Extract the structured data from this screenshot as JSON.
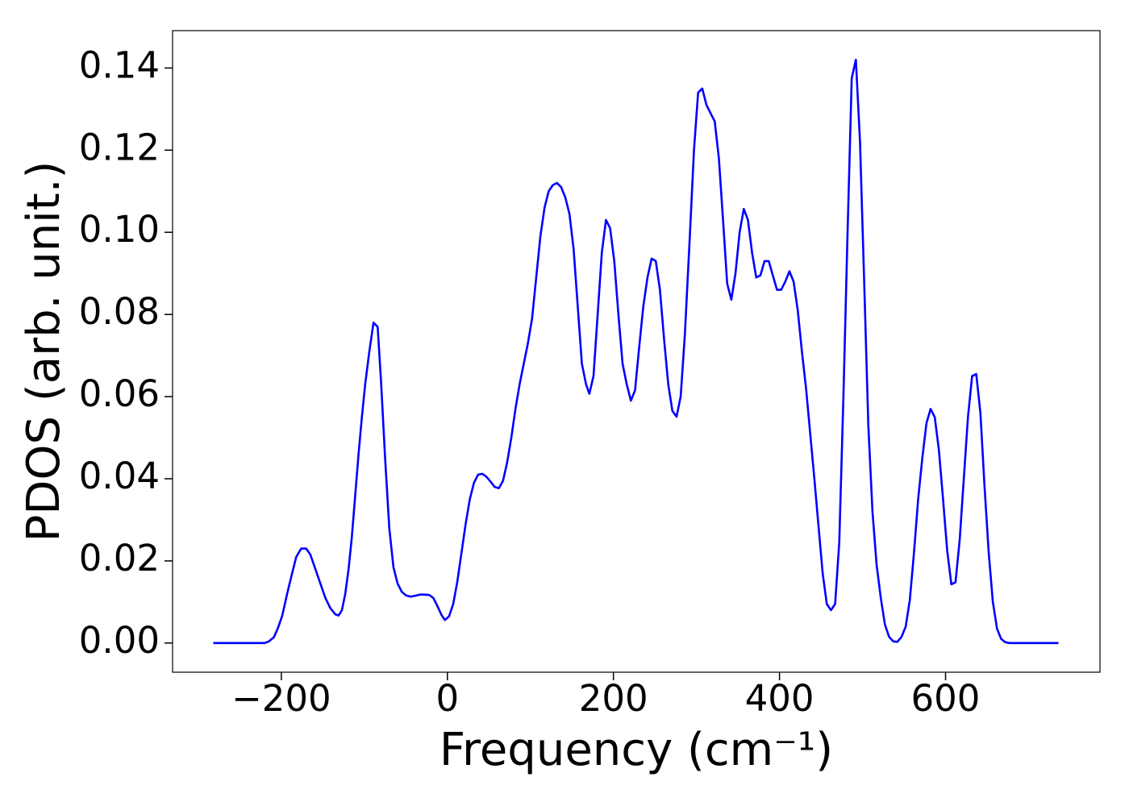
{
  "chart_data": {
    "type": "line",
    "xlabel": "Frequency (cm⁻¹)",
    "ylabel": "PDOS (arb. unit.)",
    "x": [
      -282,
      -220,
      -215,
      -209,
      -204,
      -199,
      -193,
      -187,
      -182,
      -176,
      -170,
      -165,
      -159,
      -153,
      -147,
      -141,
      -135,
      -131,
      -127,
      -123,
      -119,
      -115,
      -111,
      -107,
      -103,
      -99,
      -94,
      -89,
      -84,
      -80,
      -75,
      -70,
      -65,
      -60,
      -55,
      -50,
      -44,
      -39,
      -33,
      -28,
      -22,
      -17,
      -12,
      -7,
      -3,
      2,
      7,
      12,
      17,
      22,
      27,
      32,
      37,
      42,
      47,
      52,
      57,
      62,
      67,
      72,
      77,
      82,
      87,
      92,
      97,
      102,
      107,
      112,
      117,
      122,
      127,
      132,
      137,
      142,
      147,
      152,
      157,
      162,
      167,
      171,
      176,
      181,
      186,
      191,
      196,
      201,
      206,
      211,
      216,
      221,
      226,
      231,
      236,
      241,
      246,
      251,
      256,
      261,
      266,
      271,
      276,
      281,
      286,
      292,
      297,
      302,
      307,
      312,
      317,
      322,
      327,
      332,
      337,
      342,
      347,
      352,
      357,
      362,
      367,
      372,
      377,
      382,
      387,
      392,
      397,
      402,
      407,
      412,
      417,
      422,
      427,
      432,
      437,
      442,
      447,
      452,
      457,
      462,
      467,
      472,
      477,
      482,
      487,
      492,
      497,
      502,
      507,
      512,
      517,
      522,
      527,
      532,
      537,
      542,
      547,
      552,
      557,
      562,
      567,
      572,
      577,
      582,
      587,
      592,
      597,
      602,
      607,
      612,
      617,
      622,
      627,
      632,
      637,
      642,
      647,
      652,
      657,
      662,
      667,
      672,
      677,
      736
    ],
    "series": [
      {
        "color": "#0000ff",
        "values": [
          0,
          0,
          0.0004,
          0.0014,
          0.0037,
          0.0066,
          0.012,
          0.017,
          0.021,
          0.023,
          0.023,
          0.0215,
          0.018,
          0.0145,
          0.011,
          0.0085,
          0.007,
          0.0067,
          0.008,
          0.012,
          0.018,
          0.026,
          0.036,
          0.046,
          0.055,
          0.063,
          0.071,
          0.078,
          0.077,
          0.064,
          0.045,
          0.028,
          0.0185,
          0.0145,
          0.0125,
          0.0116,
          0.0113,
          0.0115,
          0.0118,
          0.0118,
          0.0117,
          0.011,
          0.009,
          0.0068,
          0.0056,
          0.0065,
          0.0095,
          0.015,
          0.022,
          0.029,
          0.035,
          0.039,
          0.041,
          0.0412,
          0.0405,
          0.0393,
          0.038,
          0.0377,
          0.0395,
          0.044,
          0.05,
          0.057,
          0.063,
          0.068,
          0.073,
          0.079,
          0.089,
          0.099,
          0.106,
          0.11,
          0.1115,
          0.112,
          0.111,
          0.1085,
          0.1045,
          0.096,
          0.082,
          0.068,
          0.063,
          0.0607,
          0.065,
          0.08,
          0.095,
          0.103,
          0.101,
          0.093,
          0.08,
          0.068,
          0.063,
          0.059,
          0.0615,
          0.072,
          0.082,
          0.089,
          0.0936,
          0.093,
          0.086,
          0.074,
          0.063,
          0.0565,
          0.0551,
          0.06,
          0.075,
          0.099,
          0.12,
          0.134,
          0.135,
          0.131,
          0.129,
          0.127,
          0.118,
          0.103,
          0.0875,
          0.0836,
          0.09,
          0.1,
          0.1057,
          0.103,
          0.095,
          0.089,
          0.0895,
          0.093,
          0.093,
          0.0895,
          0.086,
          0.086,
          0.088,
          0.0905,
          0.088,
          0.081,
          0.071,
          0.062,
          0.051,
          0.04,
          0.0285,
          0.017,
          0.0095,
          0.008,
          0.0095,
          0.0245,
          0.06,
          0.1,
          0.1375,
          0.142,
          0.122,
          0.088,
          0.053,
          0.032,
          0.019,
          0.011,
          0.0045,
          0.0015,
          0.0004,
          0.0003,
          0.0015,
          0.004,
          0.0105,
          0.022,
          0.035,
          0.045,
          0.0535,
          0.057,
          0.055,
          0.047,
          0.035,
          0.0225,
          0.0143,
          0.0148,
          0.025,
          0.04,
          0.055,
          0.065,
          0.0655,
          0.056,
          0.038,
          0.022,
          0.01,
          0.0035,
          0.001,
          0.0002,
          0,
          0
        ]
      }
    ],
    "xlim": [
      -331,
      786
    ],
    "ylim": [
      -0.0071,
      0.1491
    ],
    "xticks": [
      {
        "value": -200,
        "label": "−200"
      },
      0,
      200,
      400,
      600
    ],
    "yticks": [
      {
        "value": 0,
        "label": "0.00"
      },
      {
        "value": 0.02,
        "label": "0.02"
      },
      {
        "value": 0.04,
        "label": "0.04"
      },
      {
        "value": 0.06,
        "label": "0.06"
      },
      {
        "value": 0.08,
        "label": "0.08"
      },
      {
        "value": 0.1,
        "label": "0.10"
      },
      {
        "value": 0.12,
        "label": "0.12"
      },
      {
        "value": 0.14,
        "label": "0.14"
      }
    ],
    "grid": false
  }
}
